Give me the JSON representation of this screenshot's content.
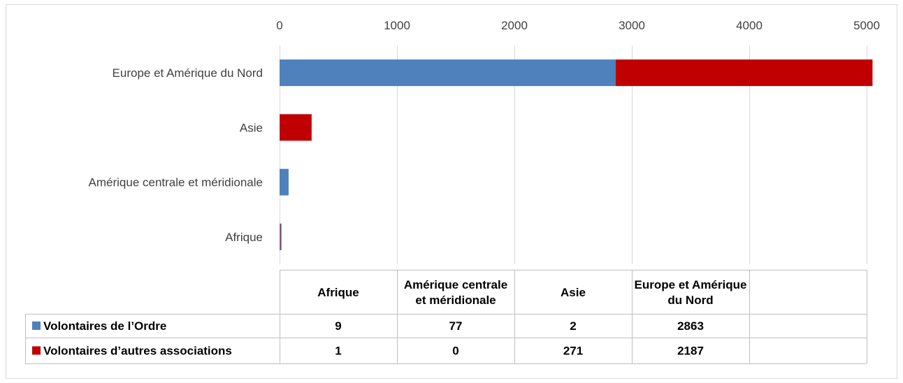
{
  "chart_data": {
    "type": "bar",
    "orientation": "horizontal",
    "stacked": true,
    "categories": [
      "Afrique",
      "Amérique centrale et méridionale",
      "Asie",
      "Europe et Amérique du Nord"
    ],
    "series": [
      {
        "name": "Volontaires de l’Ordre",
        "color": "#4f81bd",
        "values": [
          9,
          77,
          2,
          2863
        ]
      },
      {
        "name": "Volontaires d’autres associations",
        "color": "#c00000",
        "values": [
          1,
          0,
          271,
          2187
        ]
      }
    ],
    "xaxis": {
      "ticks": [
        "0",
        "1000",
        "2000",
        "3000",
        "4000",
        "5000"
      ],
      "range": [
        0,
        5000
      ],
      "position": "top"
    },
    "category_order": "reversed",
    "grid": true,
    "legend": "data-table",
    "data_table": {
      "headers": [
        "Afrique",
        "Amérique centrale et méridionale",
        "Asie",
        "Europe et Amérique du Nord"
      ],
      "rows": [
        {
          "label": "Volontaires de l’Ordre",
          "values": [
            "9",
            "77",
            "2",
            "2863"
          ]
        },
        {
          "label": "Volontaires d’autres associations",
          "values": [
            "1",
            "0",
            "271",
            "2187"
          ]
        }
      ]
    }
  }
}
